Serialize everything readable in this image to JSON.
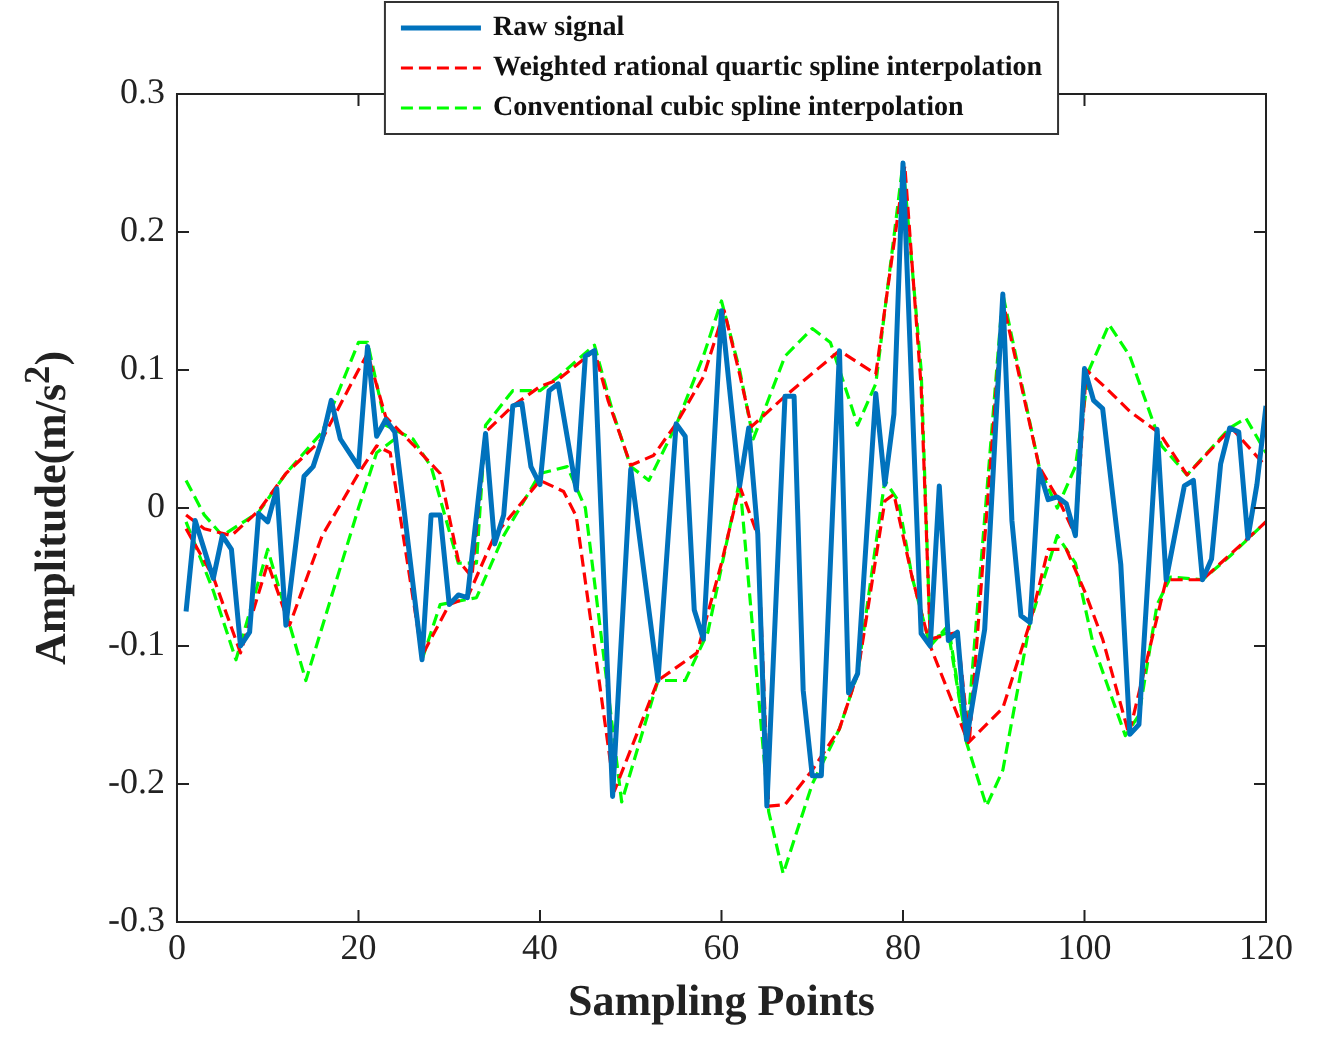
{
  "chart_data": {
    "type": "line",
    "xlabel": "Sampling Points",
    "ylabel": "Amplitude(m/s$^{2}$)",
    "xlim": [
      0,
      120
    ],
    "xticks": [
      0,
      20,
      40,
      60,
      80,
      100,
      120
    ],
    "ylim": [
      -0.3,
      0.3
    ],
    "yticks": [
      -0.3,
      -0.2,
      -0.1,
      0,
      0.1,
      0.2,
      0.3
    ],
    "legend": "top",
    "series": [
      {
        "name": "Raw signal",
        "color": "#0072bd",
        "line_style": "solid",
        "x": [
          1,
          2,
          4,
          5,
          6,
          7,
          8,
          9,
          10,
          11,
          12,
          14,
          15,
          16,
          17,
          18,
          20,
          21,
          22,
          23,
          24,
          27,
          28,
          29,
          30,
          31,
          32,
          34,
          35,
          36,
          37,
          38,
          39,
          40,
          41,
          42,
          44,
          45,
          46,
          48,
          50,
          53,
          55,
          56,
          57,
          58,
          60,
          62,
          63,
          64,
          65,
          67,
          68,
          69,
          70,
          71,
          73,
          74,
          75,
          77,
          78,
          79,
          80,
          82,
          83,
          84,
          85,
          86,
          87,
          89,
          91,
          92,
          93,
          94,
          95,
          96,
          97,
          98,
          99,
          100,
          101,
          102,
          104,
          105,
          106,
          108,
          109,
          111,
          112,
          113,
          114,
          115,
          116,
          117,
          118,
          119,
          120
        ],
        "values": [
          -0.075,
          -0.009,
          -0.051,
          -0.02,
          -0.03,
          -0.1,
          -0.09,
          -0.004,
          -0.01,
          0.014,
          -0.085,
          0.023,
          0.03,
          0.05,
          0.078,
          0.05,
          0.03,
          0.117,
          0.052,
          0.064,
          0.055,
          -0.11,
          -0.005,
          -0.005,
          -0.07,
          -0.063,
          -0.065,
          0.054,
          -0.026,
          -0.005,
          0.074,
          0.076,
          0.03,
          0.017,
          0.085,
          0.09,
          0.013,
          0.11,
          0.114,
          -0.209,
          0.028,
          -0.125,
          0.061,
          0.052,
          -0.074,
          -0.095,
          0.143,
          0.016,
          0.058,
          -0.019,
          -0.216,
          0.081,
          0.081,
          -0.132,
          -0.194,
          -0.194,
          0.114,
          -0.134,
          -0.12,
          0.083,
          0.017,
          0.068,
          0.25,
          -0.091,
          -0.1,
          0.016,
          -0.096,
          -0.09,
          -0.168,
          -0.088,
          0.155,
          -0.009,
          -0.078,
          -0.083,
          0.028,
          0.006,
          0.008,
          0.003,
          -0.02,
          0.101,
          0.078,
          0.072,
          -0.041,
          -0.164,
          -0.157,
          0.057,
          -0.052,
          0.016,
          0.02,
          -0.052,
          -0.037,
          0.032,
          0.058,
          0.055,
          -0.022,
          0.017,
          0.074
        ]
      },
      {
        "name": "Weighted rational quartic spline interpolation",
        "color": "#ff0000",
        "line_style": "dashed",
        "x": [
          1,
          3,
          6,
          9,
          12,
          16,
          20,
          21,
          23,
          26,
          29,
          31,
          32.5,
          34,
          37,
          40,
          42,
          46,
          47.5,
          50,
          52.5,
          55,
          58,
          60.3,
          62,
          63.3,
          67,
          73,
          77,
          80.2,
          82,
          83,
          86,
          87.3,
          91,
          95,
          97.3,
          99,
          100.2,
          102.2,
          105,
          108.3,
          111.3,
          116.2,
          120
        ],
        "values": [
          -0.005,
          -0.015,
          -0.02,
          -0.002,
          0.025,
          0.05,
          0.1,
          0.112,
          0.066,
          0.046,
          0.025,
          -0.038,
          -0.05,
          0.055,
          0.074,
          0.088,
          0.093,
          0.114,
          0.078,
          0.031,
          0.038,
          0.061,
          0.095,
          0.143,
          0.097,
          0.059,
          0.081,
          0.114,
          0.097,
          0.248,
          0.088,
          -0.095,
          -0.09,
          -0.17,
          0.15,
          0.03,
          0.004,
          -0.02,
          0.1,
          0.088,
          0.07,
          0.054,
          0.024,
          0.058,
          0.03
        ]
      },
      {
        "color": "#ff0000",
        "line_style": "dashed",
        "x": [
          1,
          4,
          7,
          10,
          12.4,
          16,
          20,
          22,
          23.5,
          27,
          30,
          32,
          35,
          40,
          42.6,
          44,
          48.2,
          53,
          57.3,
          60,
          62,
          64,
          65.2,
          67,
          70,
          73,
          75,
          78,
          79,
          81,
          83,
          87.2,
          91,
          94,
          96,
          98,
          100,
          102,
          104.9,
          109,
          113,
          120
        ],
        "values": [
          -0.015,
          -0.05,
          -0.105,
          -0.04,
          -0.085,
          -0.02,
          0.025,
          0.045,
          0.04,
          -0.107,
          -0.07,
          -0.065,
          -0.02,
          0.02,
          0.012,
          -0.006,
          -0.205,
          -0.125,
          -0.105,
          -0.04,
          0.016,
          -0.02,
          -0.216,
          -0.215,
          -0.19,
          -0.16,
          -0.12,
          0.005,
          0.01,
          -0.05,
          -0.1,
          -0.17,
          -0.145,
          -0.083,
          -0.03,
          -0.03,
          -0.06,
          -0.095,
          -0.164,
          -0.052,
          -0.052,
          -0.01
        ]
      },
      {
        "name": "Conventional cubic spline interpolation",
        "color": "#00ff00",
        "line_style": "dashed",
        "x": [
          1,
          3,
          5,
          9,
          12,
          16,
          20,
          21,
          23,
          26,
          28,
          31,
          33,
          34,
          37,
          40,
          42,
          46,
          48,
          50,
          52,
          55,
          58,
          60,
          62,
          63.5,
          67,
          70,
          72,
          75,
          77,
          80,
          82,
          83,
          85,
          87,
          91,
          95,
          97,
          99,
          100.5,
          102.7,
          105,
          108.5,
          111.3,
          116,
          117.8,
          120
        ],
        "values": [
          0.02,
          -0.005,
          -0.02,
          -0.003,
          0.025,
          0.055,
          0.12,
          0.12,
          0.06,
          0.05,
          0.03,
          -0.04,
          -0.04,
          0.06,
          0.085,
          0.085,
          0.095,
          0.118,
          0.07,
          0.03,
          0.02,
          0.06,
          0.11,
          0.15,
          0.1,
          0.05,
          0.11,
          0.13,
          0.12,
          0.06,
          0.09,
          0.25,
          0.1,
          -0.095,
          -0.09,
          -0.17,
          0.155,
          0.03,
          0,
          0.03,
          0.1,
          0.133,
          0.11,
          0.045,
          0.024,
          0.058,
          0.065,
          0.04
        ]
      },
      {
        "color": "#00ff00",
        "line_style": "dashed",
        "x": [
          1,
          4,
          6.5,
          10,
          14.2,
          20,
          22,
          24,
          27,
          29,
          33,
          36,
          40,
          43,
          45,
          49,
          53,
          56,
          58.5,
          62,
          65.2,
          66.8,
          70,
          73,
          75,
          78,
          79.5,
          81,
          83,
          85,
          87,
          89.2,
          91,
          94,
          97,
          99,
          101,
          104.5,
          106,
          108,
          109.5,
          113,
          116,
          120
        ],
        "values": [
          -0.01,
          -0.06,
          -0.11,
          -0.03,
          -0.125,
          0,
          0.04,
          0.05,
          -0.11,
          -0.07,
          -0.065,
          -0.02,
          0.025,
          0.03,
          0,
          -0.213,
          -0.125,
          -0.125,
          -0.09,
          0.02,
          -0.22,
          -0.265,
          -0.2,
          -0.16,
          -0.12,
          0.02,
          0.005,
          -0.05,
          -0.1,
          -0.085,
          -0.17,
          -0.216,
          -0.19,
          -0.083,
          -0.02,
          -0.04,
          -0.1,
          -0.165,
          -0.15,
          -0.07,
          -0.05,
          -0.052,
          -0.035,
          -0.01
        ]
      }
    ]
  }
}
